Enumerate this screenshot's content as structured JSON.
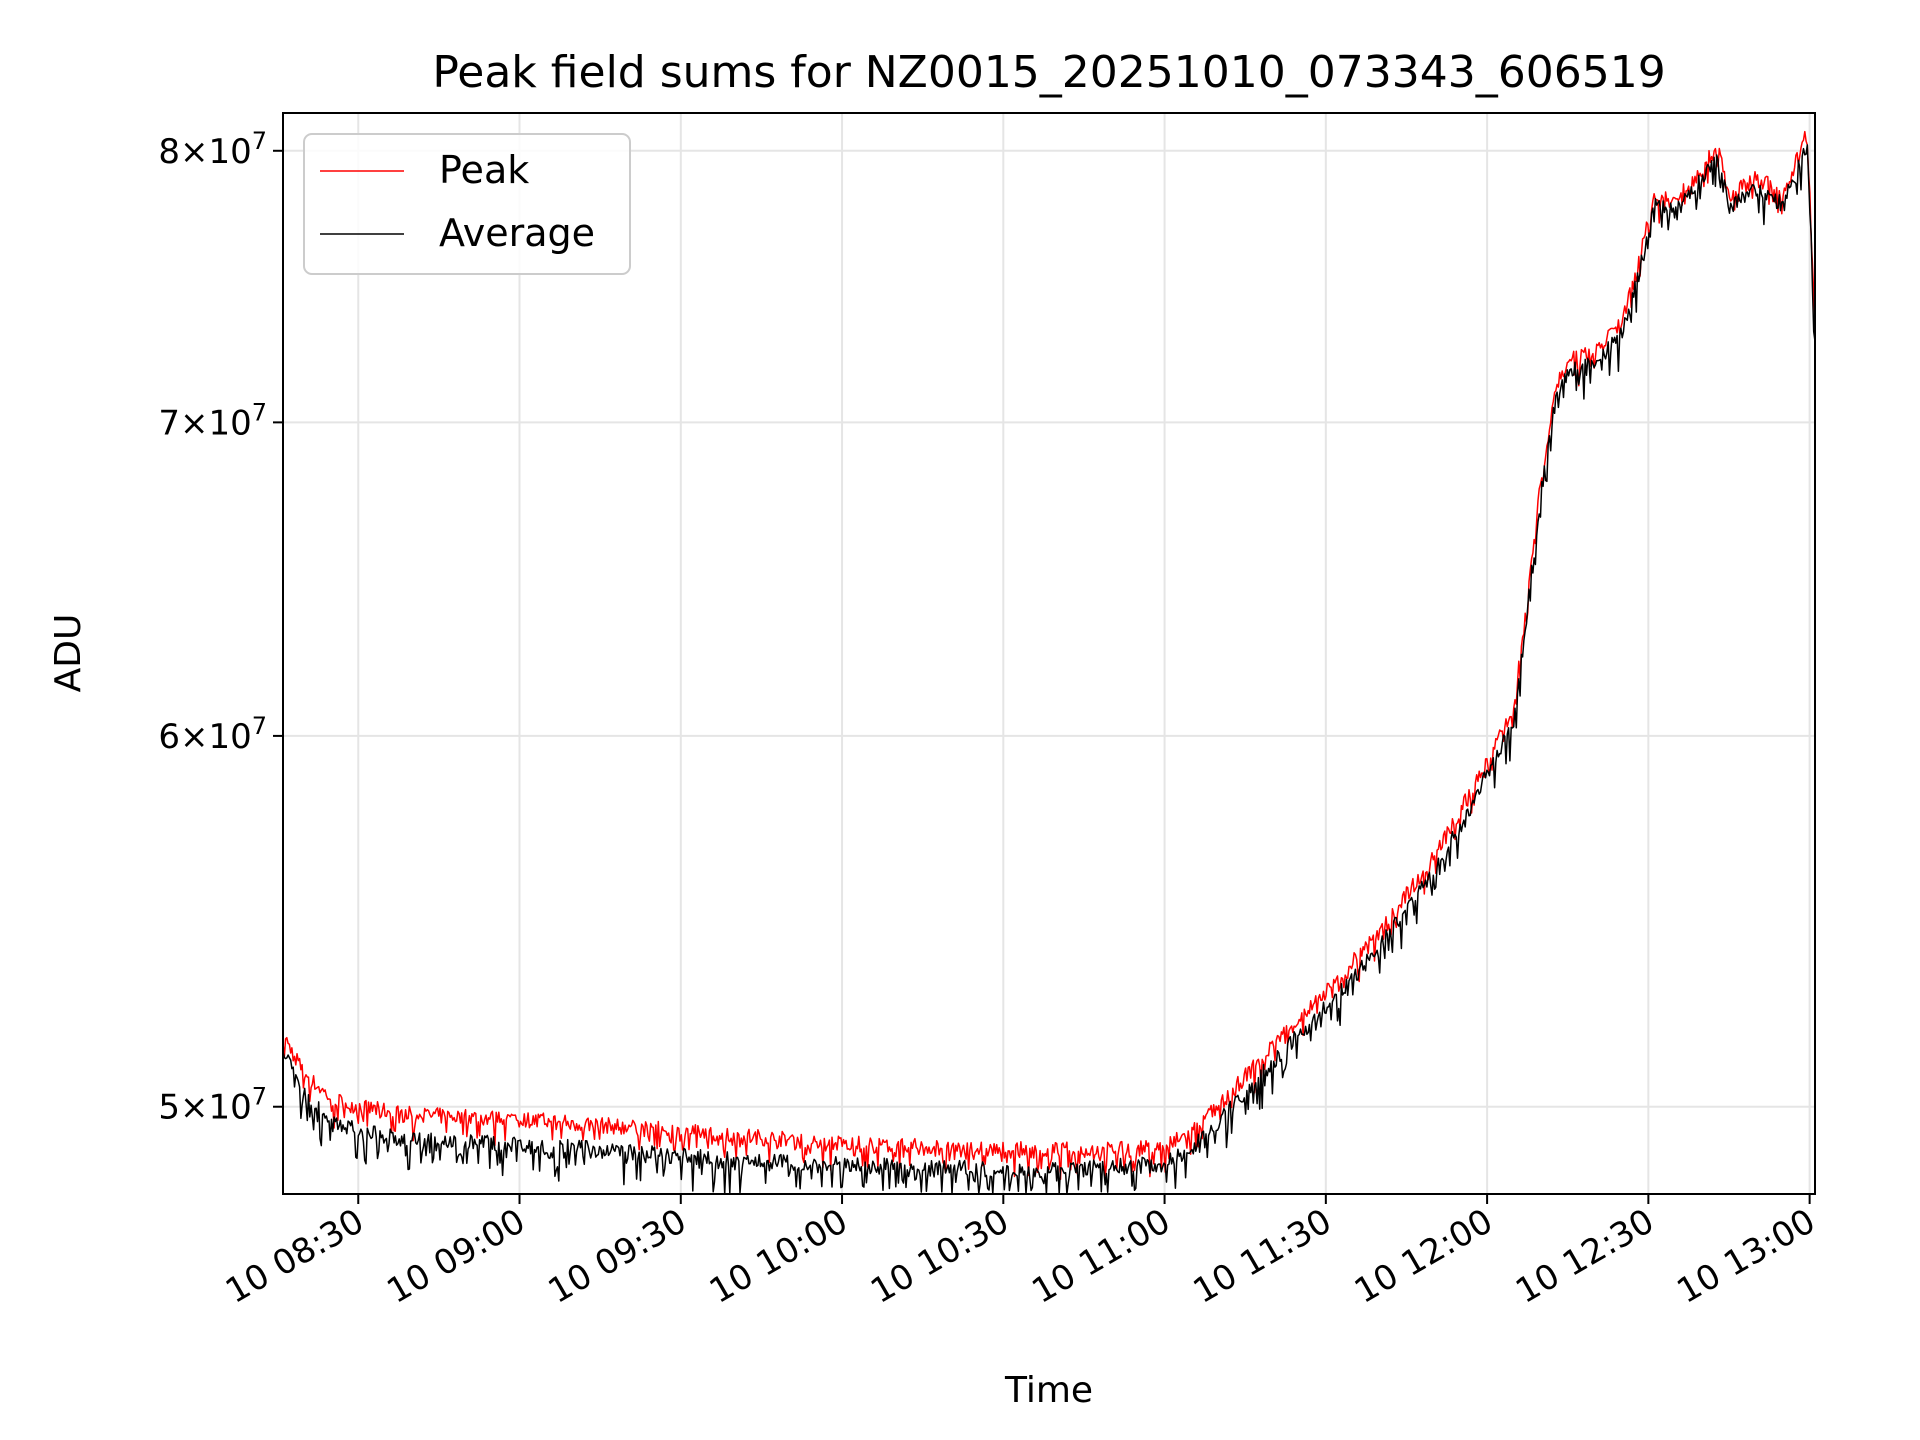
{
  "chart_data": {
    "type": "line",
    "title": "Peak field sums for NZ0015_20251010_073343_606519",
    "xlabel": "Time",
    "ylabel": "ADU",
    "x_range_minutes": [
      496,
      781
    ],
    "x_ticks": [
      {
        "minute": 510,
        "label": "10 08:30"
      },
      {
        "minute": 540,
        "label": "10 09:00"
      },
      {
        "minute": 570,
        "label": "10 09:30"
      },
      {
        "minute": 600,
        "label": "10 10:00"
      },
      {
        "minute": 630,
        "label": "10 10:30"
      },
      {
        "minute": 660,
        "label": "10 11:00"
      },
      {
        "minute": 690,
        "label": "10 11:30"
      },
      {
        "minute": 720,
        "label": "10 12:00"
      },
      {
        "minute": 750,
        "label": "10 12:30"
      },
      {
        "minute": 780,
        "label": "10 13:00"
      }
    ],
    "y_scale": "log",
    "y_range": [
      47900000,
      81500000
    ],
    "y_ticks": [
      {
        "value": 50000000,
        "mantissa": "5",
        "base": "10",
        "exp": "7"
      },
      {
        "value": 60000000,
        "mantissa": "6",
        "base": "10",
        "exp": "7"
      },
      {
        "value": 70000000,
        "mantissa": "7",
        "base": "10",
        "exp": "7"
      },
      {
        "value": 80000000,
        "mantissa": "8",
        "base": "10",
        "exp": "7"
      }
    ],
    "grid": true,
    "legend_position": "top-left",
    "noise_band": 0.008,
    "series": [
      {
        "name": "Peak",
        "color": "#ff0000",
        "offset": 1.006,
        "points": [
          [
            496,
            51800000
          ],
          [
            500,
            50800000
          ],
          [
            505,
            50200000
          ],
          [
            510,
            50000000
          ],
          [
            520,
            49800000
          ],
          [
            530,
            49750000
          ],
          [
            540,
            49700000
          ],
          [
            550,
            49600000
          ],
          [
            560,
            49500000
          ],
          [
            570,
            49400000
          ],
          [
            580,
            49300000
          ],
          [
            590,
            49200000
          ],
          [
            600,
            49100000
          ],
          [
            610,
            49050000
          ],
          [
            620,
            49000000
          ],
          [
            630,
            48950000
          ],
          [
            640,
            48950000
          ],
          [
            650,
            48950000
          ],
          [
            660,
            49000000
          ],
          [
            665,
            49400000
          ],
          [
            670,
            50000000
          ],
          [
            680,
            51500000
          ],
          [
            690,
            52900000
          ],
          [
            700,
            54500000
          ],
          [
            710,
            56500000
          ],
          [
            715,
            57800000
          ],
          [
            720,
            59300000
          ],
          [
            725,
            60800000
          ],
          [
            727,
            63500000
          ],
          [
            730,
            68000000
          ],
          [
            733,
            71500000
          ],
          [
            736,
            72200000
          ],
          [
            740,
            72500000
          ],
          [
            745,
            73500000
          ],
          [
            748,
            75500000
          ],
          [
            751,
            78300000
          ],
          [
            755,
            78000000
          ],
          [
            760,
            79300000
          ],
          [
            763,
            80200000
          ],
          [
            765,
            78200000
          ],
          [
            770,
            79000000
          ],
          [
            775,
            78300000
          ],
          [
            778,
            79800000
          ],
          [
            779.5,
            80800000
          ],
          [
            781,
            73500000
          ]
        ]
      },
      {
        "name": "Average",
        "color": "#000000",
        "offset": 0.994,
        "points": [
          [
            496,
            51500000
          ],
          [
            500,
            50300000
          ],
          [
            505,
            49700000
          ],
          [
            510,
            49400000
          ],
          [
            520,
            49200000
          ],
          [
            530,
            49150000
          ],
          [
            540,
            49100000
          ],
          [
            550,
            49000000
          ],
          [
            560,
            48900000
          ],
          [
            570,
            48800000
          ],
          [
            580,
            48700000
          ],
          [
            590,
            48650000
          ],
          [
            600,
            48600000
          ],
          [
            610,
            48550000
          ],
          [
            620,
            48500000
          ],
          [
            630,
            48500000
          ],
          [
            640,
            48500000
          ],
          [
            650,
            48550000
          ],
          [
            660,
            48600000
          ],
          [
            665,
            49000000
          ],
          [
            670,
            49600000
          ],
          [
            680,
            51100000
          ],
          [
            690,
            52500000
          ],
          [
            700,
            54100000
          ],
          [
            710,
            56100000
          ],
          [
            715,
            57400000
          ],
          [
            720,
            58900000
          ],
          [
            725,
            60400000
          ],
          [
            727,
            63100000
          ],
          [
            730,
            67600000
          ],
          [
            733,
            71100000
          ],
          [
            736,
            71800000
          ],
          [
            740,
            72100000
          ],
          [
            745,
            73100000
          ],
          [
            748,
            75100000
          ],
          [
            751,
            77900000
          ],
          [
            755,
            77600000
          ],
          [
            760,
            78900000
          ],
          [
            763,
            79800000
          ],
          [
            765,
            77800000
          ],
          [
            770,
            78600000
          ],
          [
            775,
            77900000
          ],
          [
            778,
            79400000
          ],
          [
            779.5,
            80400000
          ],
          [
            781,
            73100000
          ]
        ]
      }
    ]
  }
}
